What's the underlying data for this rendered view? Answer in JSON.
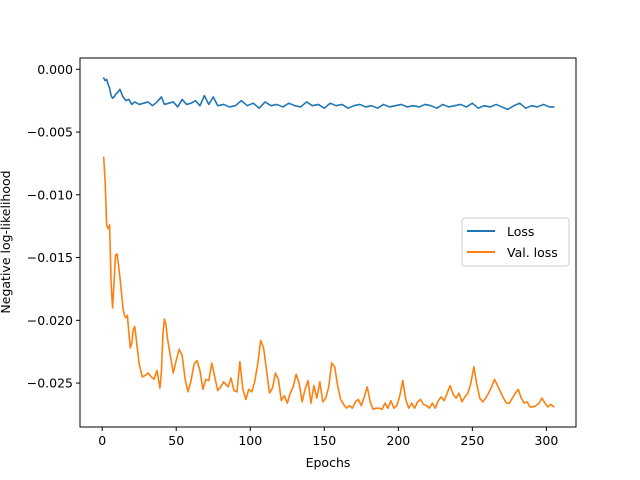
{
  "chart_data": {
    "type": "line",
    "title": "",
    "xlabel": "Epochs",
    "ylabel": "Negative log-likelihood",
    "xlim": [
      -15,
      320
    ],
    "ylim": [
      -0.0285,
      0.0009
    ],
    "xticks": [
      0,
      50,
      100,
      150,
      200,
      250,
      300
    ],
    "xtick_labels": [
      "0",
      "50",
      "100",
      "150",
      "200",
      "250",
      "300"
    ],
    "yticks": [
      0.0,
      -0.005,
      -0.01,
      -0.015,
      -0.02,
      -0.025
    ],
    "ytick_labels": [
      "0.000",
      "−0.005",
      "−0.010",
      "−0.015",
      "−0.020",
      "−0.025"
    ],
    "grid": false,
    "legend": {
      "position": "center-right"
    },
    "series": [
      {
        "name": "Loss",
        "color": "#1f77b4",
        "points": [
          [
            1,
            -0.0007
          ],
          [
            2,
            -0.0009
          ],
          [
            3,
            -0.0008
          ],
          [
            4,
            -0.0012
          ],
          [
            5,
            -0.0015
          ],
          [
            6,
            -0.0021
          ],
          [
            7,
            -0.0023
          ],
          [
            8,
            -0.0022
          ],
          [
            9,
            -0.002
          ],
          [
            10,
            -0.0019
          ],
          [
            12,
            -0.0016
          ],
          [
            14,
            -0.0022
          ],
          [
            16,
            -0.0025
          ],
          [
            18,
            -0.0024
          ],
          [
            20,
            -0.0028
          ],
          [
            22,
            -0.0026
          ],
          [
            25,
            -0.0028
          ],
          [
            28,
            -0.0027
          ],
          [
            31,
            -0.0026
          ],
          [
            34,
            -0.0029
          ],
          [
            37,
            -0.0026
          ],
          [
            40,
            -0.0022
          ],
          [
            42,
            -0.0028
          ],
          [
            45,
            -0.0027
          ],
          [
            48,
            -0.0026
          ],
          [
            51,
            -0.003
          ],
          [
            54,
            -0.0024
          ],
          [
            57,
            -0.0028
          ],
          [
            60,
            -0.0027
          ],
          [
            63,
            -0.0025
          ],
          [
            66,
            -0.0029
          ],
          [
            69,
            -0.0021
          ],
          [
            72,
            -0.0028
          ],
          [
            75,
            -0.0022
          ],
          [
            78,
            -0.0029
          ],
          [
            82,
            -0.0028
          ],
          [
            86,
            -0.003
          ],
          [
            90,
            -0.0029
          ],
          [
            94,
            -0.0025
          ],
          [
            98,
            -0.0029
          ],
          [
            102,
            -0.0027
          ],
          [
            106,
            -0.0031
          ],
          [
            110,
            -0.0026
          ],
          [
            114,
            -0.0029
          ],
          [
            118,
            -0.0028
          ],
          [
            122,
            -0.003
          ],
          [
            126,
            -0.0027
          ],
          [
            130,
            -0.0029
          ],
          [
            134,
            -0.003
          ],
          [
            138,
            -0.0026
          ],
          [
            142,
            -0.0029
          ],
          [
            146,
            -0.0028
          ],
          [
            150,
            -0.0031
          ],
          [
            154,
            -0.0027
          ],
          [
            158,
            -0.0029
          ],
          [
            162,
            -0.0028
          ],
          [
            166,
            -0.0031
          ],
          [
            170,
            -0.0029
          ],
          [
            174,
            -0.0028
          ],
          [
            178,
            -0.003
          ],
          [
            182,
            -0.0029
          ],
          [
            186,
            -0.0031
          ],
          [
            190,
            -0.0028
          ],
          [
            194,
            -0.003
          ],
          [
            198,
            -0.0029
          ],
          [
            202,
            -0.0028
          ],
          [
            206,
            -0.003
          ],
          [
            210,
            -0.0029
          ],
          [
            214,
            -0.003
          ],
          [
            218,
            -0.0028
          ],
          [
            222,
            -0.0029
          ],
          [
            226,
            -0.0031
          ],
          [
            230,
            -0.0028
          ],
          [
            234,
            -0.003
          ],
          [
            238,
            -0.0029
          ],
          [
            242,
            -0.0028
          ],
          [
            246,
            -0.003
          ],
          [
            250,
            -0.0027
          ],
          [
            254,
            -0.0031
          ],
          [
            258,
            -0.0029
          ],
          [
            262,
            -0.003
          ],
          [
            266,
            -0.0028
          ],
          [
            270,
            -0.003
          ],
          [
            274,
            -0.0032
          ],
          [
            278,
            -0.0029
          ],
          [
            282,
            -0.0027
          ],
          [
            286,
            -0.0031
          ],
          [
            290,
            -0.0029
          ],
          [
            294,
            -0.003
          ],
          [
            298,
            -0.0028
          ],
          [
            302,
            -0.003
          ],
          [
            305,
            -0.003
          ]
        ]
      },
      {
        "name": "Val. loss",
        "color": "#ff7f0e",
        "points": [
          [
            1,
            -0.007
          ],
          [
            2,
            -0.009
          ],
          [
            3,
            -0.0124
          ],
          [
            4,
            -0.0127
          ],
          [
            5,
            -0.0124
          ],
          [
            6,
            -0.017
          ],
          [
            7,
            -0.019
          ],
          [
            8,
            -0.017
          ],
          [
            9,
            -0.0148
          ],
          [
            10,
            -0.0147
          ],
          [
            11,
            -0.0156
          ],
          [
            12,
            -0.0166
          ],
          [
            13,
            -0.0178
          ],
          [
            14,
            -0.019
          ],
          [
            15,
            -0.0196
          ],
          [
            16,
            -0.0198
          ],
          [
            17,
            -0.0196
          ],
          [
            18,
            -0.021
          ],
          [
            19,
            -0.0222
          ],
          [
            20,
            -0.0218
          ],
          [
            21,
            -0.0207
          ],
          [
            22,
            -0.0205
          ],
          [
            23,
            -0.0215
          ],
          [
            25,
            -0.0235
          ],
          [
            27,
            -0.0245
          ],
          [
            29,
            -0.0244
          ],
          [
            31,
            -0.0242
          ],
          [
            33,
            -0.0245
          ],
          [
            35,
            -0.0247
          ],
          [
            37,
            -0.024
          ],
          [
            39,
            -0.0254
          ],
          [
            40,
            -0.0241
          ],
          [
            41,
            -0.0211
          ],
          [
            42,
            -0.0199
          ],
          [
            43,
            -0.0203
          ],
          [
            44,
            -0.0214
          ],
          [
            46,
            -0.0228
          ],
          [
            48,
            -0.0242
          ],
          [
            50,
            -0.0232
          ],
          [
            52,
            -0.0223
          ],
          [
            54,
            -0.0228
          ],
          [
            56,
            -0.0247
          ],
          [
            58,
            -0.0257
          ],
          [
            60,
            -0.0248
          ],
          [
            62,
            -0.0235
          ],
          [
            64,
            -0.0232
          ],
          [
            66,
            -0.024
          ],
          [
            68,
            -0.0255
          ],
          [
            70,
            -0.0247
          ],
          [
            72,
            -0.0248
          ],
          [
            74,
            -0.0234
          ],
          [
            76,
            -0.0245
          ],
          [
            78,
            -0.0256
          ],
          [
            80,
            -0.0253
          ],
          [
            82,
            -0.0249
          ],
          [
            85,
            -0.0253
          ],
          [
            87,
            -0.0246
          ],
          [
            89,
            -0.0256
          ],
          [
            91,
            -0.0257
          ],
          [
            93,
            -0.0233
          ],
          [
            95,
            -0.0255
          ],
          [
            97,
            -0.0263
          ],
          [
            99,
            -0.0255
          ],
          [
            101,
            -0.0257
          ],
          [
            103,
            -0.0249
          ],
          [
            105,
            -0.0235
          ],
          [
            107,
            -0.0216
          ],
          [
            109,
            -0.0222
          ],
          [
            111,
            -0.024
          ],
          [
            113,
            -0.0258
          ],
          [
            115,
            -0.0254
          ],
          [
            117,
            -0.0242
          ],
          [
            119,
            -0.0247
          ],
          [
            121,
            -0.0264
          ],
          [
            123,
            -0.026
          ],
          [
            125,
            -0.0266
          ],
          [
            127,
            -0.0258
          ],
          [
            129,
            -0.0253
          ],
          [
            131,
            -0.0243
          ],
          [
            133,
            -0.025
          ],
          [
            135,
            -0.0265
          ],
          [
            137,
            -0.0255
          ],
          [
            139,
            -0.0248
          ],
          [
            141,
            -0.0266
          ],
          [
            143,
            -0.0252
          ],
          [
            145,
            -0.0262
          ],
          [
            147,
            -0.0249
          ],
          [
            149,
            -0.0265
          ],
          [
            151,
            -0.0262
          ],
          [
            153,
            -0.0253
          ],
          [
            155,
            -0.0234
          ],
          [
            157,
            -0.0237
          ],
          [
            159,
            -0.0252
          ],
          [
            161,
            -0.0263
          ],
          [
            163,
            -0.0267
          ],
          [
            165,
            -0.027
          ],
          [
            167,
            -0.0268
          ],
          [
            169,
            -0.027
          ],
          [
            171,
            -0.0265
          ],
          [
            173,
            -0.0263
          ],
          [
            175,
            -0.0268
          ],
          [
            177,
            -0.0261
          ],
          [
            179,
            -0.0253
          ],
          [
            181,
            -0.0265
          ],
          [
            183,
            -0.0271
          ],
          [
            185,
            -0.027
          ],
          [
            187,
            -0.027
          ],
          [
            189,
            -0.0271
          ],
          [
            191,
            -0.0266
          ],
          [
            193,
            -0.027
          ],
          [
            195,
            -0.0264
          ],
          [
            197,
            -0.027
          ],
          [
            199,
            -0.0268
          ],
          [
            201,
            -0.026
          ],
          [
            203,
            -0.0248
          ],
          [
            205,
            -0.0263
          ],
          [
            207,
            -0.027
          ],
          [
            209,
            -0.0266
          ],
          [
            211,
            -0.027
          ],
          [
            213,
            -0.0265
          ],
          [
            215,
            -0.0263
          ],
          [
            217,
            -0.0267
          ],
          [
            219,
            -0.0268
          ],
          [
            221,
            -0.027
          ],
          [
            223,
            -0.0266
          ],
          [
            225,
            -0.027
          ],
          [
            227,
            -0.0264
          ],
          [
            229,
            -0.0261
          ],
          [
            231,
            -0.0264
          ],
          [
            233,
            -0.0258
          ],
          [
            235,
            -0.0252
          ],
          [
            237,
            -0.0259
          ],
          [
            239,
            -0.0262
          ],
          [
            241,
            -0.0258
          ],
          [
            243,
            -0.0265
          ],
          [
            245,
            -0.0261
          ],
          [
            247,
            -0.0258
          ],
          [
            249,
            -0.025
          ],
          [
            251,
            -0.0237
          ],
          [
            253,
            -0.0251
          ],
          [
            255,
            -0.0262
          ],
          [
            257,
            -0.0265
          ],
          [
            259,
            -0.0262
          ],
          [
            261,
            -0.0258
          ],
          [
            263,
            -0.0253
          ],
          [
            265,
            -0.0247
          ],
          [
            267,
            -0.0252
          ],
          [
            269,
            -0.0257
          ],
          [
            271,
            -0.0262
          ],
          [
            273,
            -0.0266
          ],
          [
            275,
            -0.0266
          ],
          [
            277,
            -0.0262
          ],
          [
            279,
            -0.0258
          ],
          [
            281,
            -0.0255
          ],
          [
            283,
            -0.0262
          ],
          [
            285,
            -0.0266
          ],
          [
            287,
            -0.0265
          ],
          [
            289,
            -0.0269
          ],
          [
            291,
            -0.0269
          ],
          [
            293,
            -0.0268
          ],
          [
            295,
            -0.0266
          ],
          [
            297,
            -0.0262
          ],
          [
            299,
            -0.0266
          ],
          [
            301,
            -0.0269
          ],
          [
            303,
            -0.0267
          ],
          [
            305,
            -0.0269
          ]
        ]
      }
    ]
  }
}
